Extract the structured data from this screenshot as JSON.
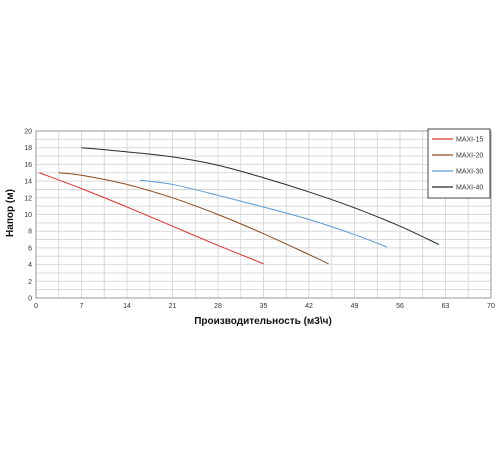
{
  "chart_data": {
    "type": "line",
    "title": "",
    "xlabel": "Производительность (м3\\ч)",
    "ylabel": "Напор (м)",
    "xlim": [
      0,
      70
    ],
    "ylim": [
      0,
      20
    ],
    "x_ticks": [
      "0",
      "7",
      "14",
      "21",
      "28",
      "35",
      "42",
      "49",
      "56",
      "63",
      "70"
    ],
    "y_ticks": [
      "0",
      "2",
      "4",
      "6",
      "8",
      "10",
      "12",
      "14",
      "16",
      "18",
      "20"
    ],
    "grid": true,
    "legend_position": "top-right",
    "series": [
      {
        "name": "MAXI-15",
        "color": "#e0312f",
        "points": [
          [
            0.5,
            15.0
          ],
          [
            7,
            13.1
          ],
          [
            14,
            10.9
          ],
          [
            21,
            8.6
          ],
          [
            28,
            6.3
          ],
          [
            35,
            4.1
          ]
        ]
      },
      {
        "name": "MAXI-20",
        "color": "#8b4a1c",
        "points": [
          [
            3.5,
            15.0
          ],
          [
            7,
            14.7
          ],
          [
            14,
            13.6
          ],
          [
            21,
            12.0
          ],
          [
            28,
            10.0
          ],
          [
            35,
            7.7
          ],
          [
            42,
            5.2
          ],
          [
            45,
            4.1
          ]
        ]
      },
      {
        "name": "MAXI-30",
        "color": "#5b9bd5",
        "points": [
          [
            16,
            14.1
          ],
          [
            21,
            13.6
          ],
          [
            28,
            12.3
          ],
          [
            35,
            10.9
          ],
          [
            42,
            9.4
          ],
          [
            49,
            7.6
          ],
          [
            54,
            6.1
          ]
        ]
      },
      {
        "name": "MAXI-40",
        "color": "#1f2a33",
        "points": [
          [
            7,
            18.0
          ],
          [
            14,
            17.5
          ],
          [
            21,
            16.9
          ],
          [
            28,
            15.9
          ],
          [
            35,
            14.4
          ],
          [
            42,
            12.7
          ],
          [
            49,
            10.8
          ],
          [
            56,
            8.6
          ],
          [
            62,
            6.4
          ]
        ]
      }
    ]
  }
}
